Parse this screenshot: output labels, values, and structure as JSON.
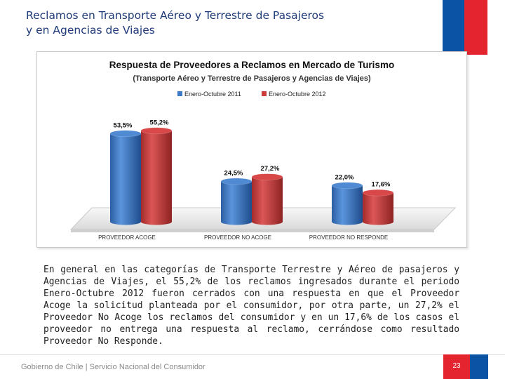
{
  "slide": {
    "title_line1": "Reclamos en Transporte Aéreo y Terrestre de Pasajeros",
    "title_line2": "y en Agencias de Viajes",
    "body": "En general en las categorías de Transporte Terrestre y Aéreo de pasajeros y Agencias de Viajes, el 55,2% de los reclamos ingresados durante el periodo Enero-Octubre 2012 fueron cerrados con una respuesta en que el Proveedor Acoge la solicitud planteada por el consumidor, por otra parte, un 27,2% el Proveedor No Acoge los reclamos del consumidor y en un 17,6% de los casos el proveedor no entrega una respuesta al reclamo, cerrándose como resultado Proveedor No Responde.",
    "footer": "Gobierno de Chile | Servicio Nacional del Consumidor",
    "page_number": "23"
  },
  "colors": {
    "title": "#1f3b78",
    "series_2011": "#3c78c8",
    "series_2012": "#cc3b3b"
  },
  "chart_data": {
    "type": "bar",
    "title": "Respuesta de Proveedores a Reclamos en Mercado de Turismo",
    "subtitle": "(Transporte Aéreo y Terrestre de Pasajeros y Agencias de Viajes)",
    "categories": [
      "PROVEEDOR ACOGE",
      "PROVEEDOR NO ACOGE",
      "PROVEEDOR NO RESPONDE"
    ],
    "series": [
      {
        "name": "Enero-Octubre 2011",
        "values": [
          53.5,
          24.5,
          22.0
        ],
        "labels": [
          "53,5%",
          "24,5%",
          "22,0%"
        ]
      },
      {
        "name": "Enero-Octubre 2012",
        "values": [
          55.2,
          27.2,
          17.6
        ],
        "labels": [
          "55,2%",
          "27,2%",
          "17,6%"
        ]
      }
    ],
    "ylim": [
      0,
      60
    ],
    "legend": "top-center",
    "style": "3d-cylinder"
  }
}
